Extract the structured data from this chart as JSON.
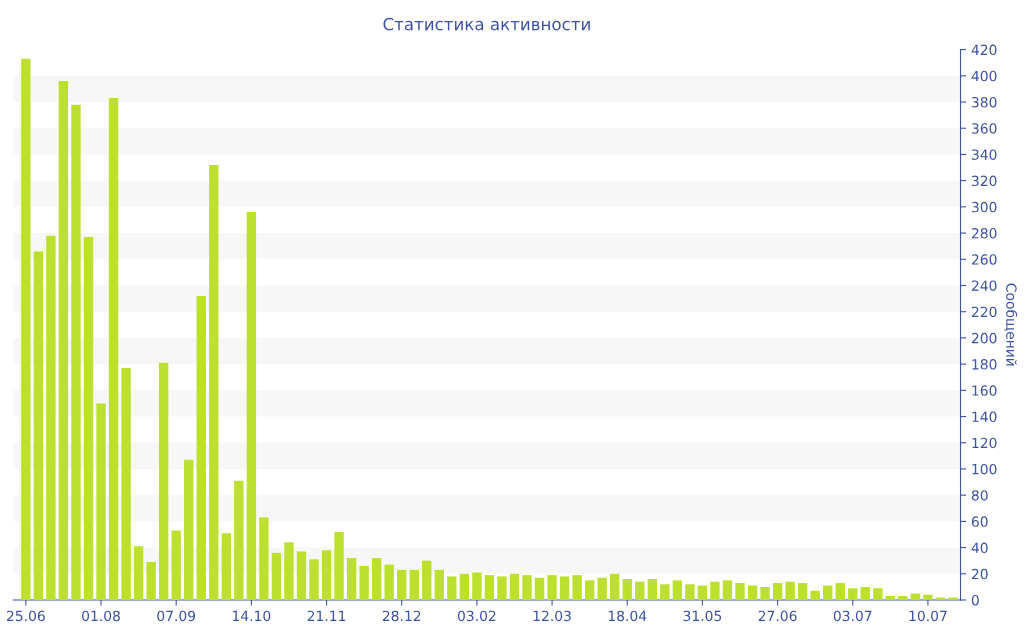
{
  "chart_data": {
    "type": "bar",
    "title": "Статистика активности",
    "ylabel": "Сообщений",
    "categories": [
      "25.06",
      null,
      null,
      null,
      null,
      null,
      "01.08",
      null,
      null,
      null,
      null,
      null,
      "07.09",
      null,
      null,
      null,
      null,
      null,
      "14.10",
      null,
      null,
      null,
      null,
      null,
      "21.11",
      null,
      null,
      null,
      null,
      null,
      "28.12",
      null,
      null,
      null,
      null,
      null,
      "03.02",
      null,
      null,
      null,
      null,
      null,
      "12.03",
      null,
      null,
      null,
      null,
      null,
      "18.04",
      null,
      null,
      null,
      null,
      null,
      "31.05",
      null,
      null,
      null,
      null,
      null,
      "27.06",
      null,
      null,
      null,
      null,
      null,
      "03.07",
      null,
      null,
      null,
      null,
      null,
      "10.07",
      null,
      null
    ],
    "values": [
      413,
      266,
      278,
      396,
      378,
      277,
      150,
      383,
      177,
      41,
      29,
      181,
      53,
      107,
      232,
      332,
      51,
      91,
      296,
      63,
      36,
      44,
      37,
      31,
      38,
      52,
      32,
      26,
      32,
      27,
      23,
      23,
      30,
      23,
      18,
      20,
      21,
      19,
      18,
      20,
      19,
      17,
      19,
      18,
      19,
      15,
      17,
      20,
      16,
      14,
      16,
      12,
      15,
      12,
      11,
      14,
      15,
      13,
      11,
      10,
      13,
      14,
      13,
      7,
      11,
      13,
      9,
      10,
      9,
      3,
      3,
      5,
      4,
      2,
      2
    ],
    "color": "#bde02f",
    "ylim": [
      0,
      420
    ],
    "yticks": [
      0,
      20,
      40,
      60,
      80,
      100,
      120,
      140,
      160,
      180,
      200,
      220,
      240,
      260,
      280,
      300,
      320,
      340,
      360,
      380,
      400,
      420
    ],
    "bands": [
      {
        "axis": "y",
        "from": 20,
        "to": 40,
        "color": "#f7f7f7"
      },
      {
        "axis": "y",
        "from": 60,
        "to": 80,
        "color": "#f7f7f7"
      },
      {
        "axis": "y",
        "from": 100,
        "to": 120,
        "color": "#f7f7f7"
      },
      {
        "axis": "y",
        "from": 140,
        "to": 160,
        "color": "#f7f7f7"
      },
      {
        "axis": "y",
        "from": 180,
        "to": 200,
        "color": "#f7f7f7"
      },
      {
        "axis": "y",
        "from": 220,
        "to": 240,
        "color": "#f7f7f7"
      },
      {
        "axis": "y",
        "from": 260,
        "to": 280,
        "color": "#f7f7f7"
      },
      {
        "axis": "y",
        "from": 300,
        "to": 320,
        "color": "#f7f7f7"
      },
      {
        "axis": "y",
        "from": 340,
        "to": 360,
        "color": "#f7f7f7"
      },
      {
        "axis": "y",
        "from": 380,
        "to": 400,
        "color": "#f7f7f7"
      }
    ]
  }
}
